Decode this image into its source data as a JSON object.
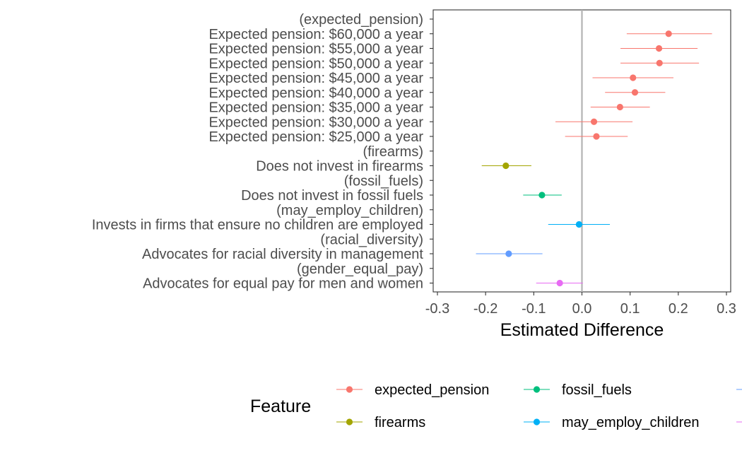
{
  "chart_data": {
    "type": "scatter",
    "subtype": "coefficient-plot-with-error-bars",
    "xlabel": "Estimated Difference",
    "ylabel": "",
    "xlim": [
      -0.3,
      0.3
    ],
    "xticks": [
      -0.3,
      -0.2,
      -0.1,
      0.0,
      0.1,
      0.2,
      0.3
    ],
    "xtick_labels": [
      "-0.3",
      "-0.2",
      "-0.1",
      "0.0",
      "0.1",
      "0.2",
      "0.3"
    ],
    "reference_line": 0,
    "grid": false,
    "categories": [
      "(expected_pension)",
      "Expected pension: $60,000 a year",
      "Expected pension: $55,000 a year",
      "Expected pension: $50,000 a year",
      "Expected pension: $45,000 a year",
      "Expected pension: $40,000 a year",
      "Expected pension: $35,000 a year",
      "Expected pension: $30,000 a year",
      "Expected pension: $25,000 a year",
      "(firearms)",
      "Does not invest in firearms",
      "(fossil_fuels)",
      "Does not invest in fossil fuels",
      "(may_employ_children)",
      "Invests in firms that ensure no children are employed",
      "(racial_diversity)",
      "Advocates for racial diversity in management",
      "(gender_equal_pay)",
      "Advocates for equal pay for men and women"
    ],
    "series": [
      {
        "name": "expected_pension",
        "color": "#F8766D",
        "points": [
          {
            "label": "Expected pension: $60,000 a year",
            "estimate": 0.18,
            "lower": 0.093,
            "upper": 0.27
          },
          {
            "label": "Expected pension: $55,000 a year",
            "estimate": 0.16,
            "lower": 0.08,
            "upper": 0.24
          },
          {
            "label": "Expected pension: $50,000 a year",
            "estimate": 0.161,
            "lower": 0.08,
            "upper": 0.243
          },
          {
            "label": "Expected pension: $45,000 a year",
            "estimate": 0.106,
            "lower": 0.022,
            "upper": 0.19
          },
          {
            "label": "Expected pension: $40,000 a year",
            "estimate": 0.11,
            "lower": 0.048,
            "upper": 0.173
          },
          {
            "label": "Expected pension: $35,000 a year",
            "estimate": 0.079,
            "lower": 0.018,
            "upper": 0.141
          },
          {
            "label": "Expected pension: $30,000 a year",
            "estimate": 0.025,
            "lower": -0.055,
            "upper": 0.105
          },
          {
            "label": "Expected pension: $25,000 a year",
            "estimate": 0.03,
            "lower": -0.035,
            "upper": 0.095
          }
        ]
      },
      {
        "name": "firearms",
        "color": "#A3A500",
        "points": [
          {
            "label": "Does not invest in firearms",
            "estimate": -0.158,
            "lower": -0.208,
            "upper": -0.105
          }
        ]
      },
      {
        "name": "fossil_fuels",
        "color": "#00BF7D",
        "points": [
          {
            "label": "Does not invest in fossil fuels",
            "estimate": -0.083,
            "lower": -0.122,
            "upper": -0.042
          }
        ]
      },
      {
        "name": "may_employ_children",
        "color": "#00B0F6",
        "points": [
          {
            "label": "Invests in firms that ensure no children are employed",
            "estimate": -0.006,
            "lower": -0.07,
            "upper": 0.058
          }
        ]
      },
      {
        "name": "racial_diversity",
        "color": "#619CFF",
        "points": [
          {
            "label": "Advocates for racial diversity in management",
            "estimate": -0.152,
            "lower": -0.22,
            "upper": -0.082
          }
        ]
      },
      {
        "name": "gender_equal_pay",
        "color": "#E76BF3",
        "points": [
          {
            "label": "Advocates for equal pay for men and women",
            "estimate": -0.046,
            "lower": -0.095,
            "upper": 0.002
          }
        ]
      }
    ],
    "legend": {
      "title": "Feature",
      "position": "bottom",
      "visible_entries": [
        "expected_pension",
        "fossil_fuels",
        "firearms",
        "may_employ_children"
      ],
      "clipped_entries": [
        "racial_diversity",
        "gender_equal_pay"
      ]
    }
  }
}
